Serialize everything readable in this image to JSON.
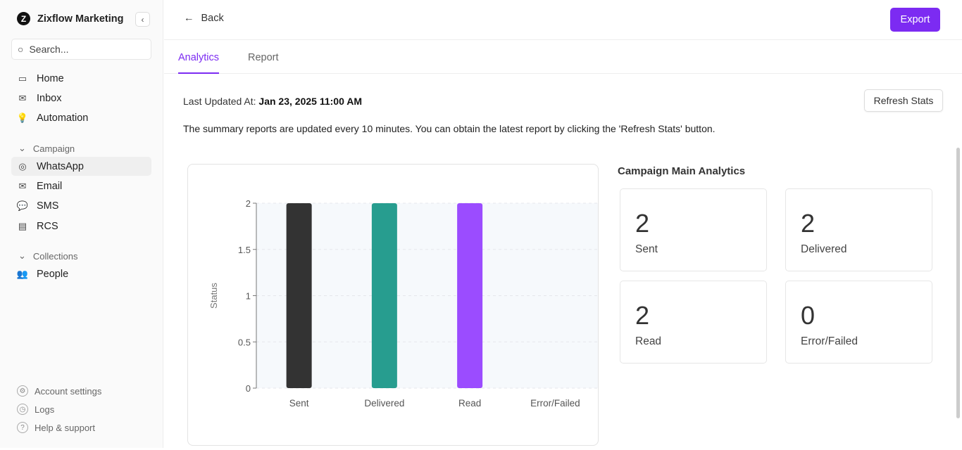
{
  "sidebar": {
    "brand": "Zixflow Marketing",
    "search_placeholder": "Search...",
    "items": [
      {
        "label": "Home",
        "icon": "laptop-icon"
      },
      {
        "label": "Inbox",
        "icon": "inbox-icon"
      },
      {
        "label": "Automation",
        "icon": "lightbulb-icon"
      }
    ],
    "campaign_label": "Campaign",
    "campaign_items": [
      {
        "label": "WhatsApp",
        "icon": "whatsapp-icon",
        "active": true
      },
      {
        "label": "Email",
        "icon": "mail-icon"
      },
      {
        "label": "SMS",
        "icon": "chat-icon"
      },
      {
        "label": "RCS",
        "icon": "message-square-icon"
      }
    ],
    "collections_label": "Collections",
    "collection_items": [
      {
        "label": "People",
        "icon": "people-icon"
      }
    ],
    "footer": [
      {
        "label": "Account settings",
        "icon": "gear-icon"
      },
      {
        "label": "Logs",
        "icon": "clock-icon"
      },
      {
        "label": "Help & support",
        "icon": "help-icon"
      }
    ]
  },
  "header": {
    "back": "Back",
    "export": "Export"
  },
  "tabs": [
    {
      "label": "Analytics",
      "active": true
    },
    {
      "label": "Report"
    }
  ],
  "updated": {
    "label": "Last Updated At:",
    "value": "Jan 23, 2025 11:00 AM"
  },
  "refresh": "Refresh Stats",
  "note": "The summary reports are updated every 10 minutes. You can obtain the latest report by clicking the 'Refresh Stats' button.",
  "analytics": {
    "title": "Campaign Main Analytics",
    "cards": [
      {
        "value": "2",
        "label": "Sent"
      },
      {
        "value": "2",
        "label": "Delivered"
      },
      {
        "value": "2",
        "label": "Read"
      },
      {
        "value": "0",
        "label": "Error/Failed"
      }
    ]
  },
  "colors": {
    "accent": "#7c2bf2"
  },
  "chart_data": {
    "type": "bar",
    "categories": [
      "Sent",
      "Delivered",
      "Read",
      "Error/Failed"
    ],
    "values": [
      2,
      2,
      2,
      0
    ],
    "colors": [
      "#333333",
      "#279d8f",
      "#9b4cff",
      "#cccccc"
    ],
    "ylabel": "Status",
    "xlabel": "",
    "ylim": [
      0,
      2
    ],
    "yticks": [
      "0",
      "0.5",
      "1",
      "1.5",
      "2"
    ],
    "grid": true
  }
}
